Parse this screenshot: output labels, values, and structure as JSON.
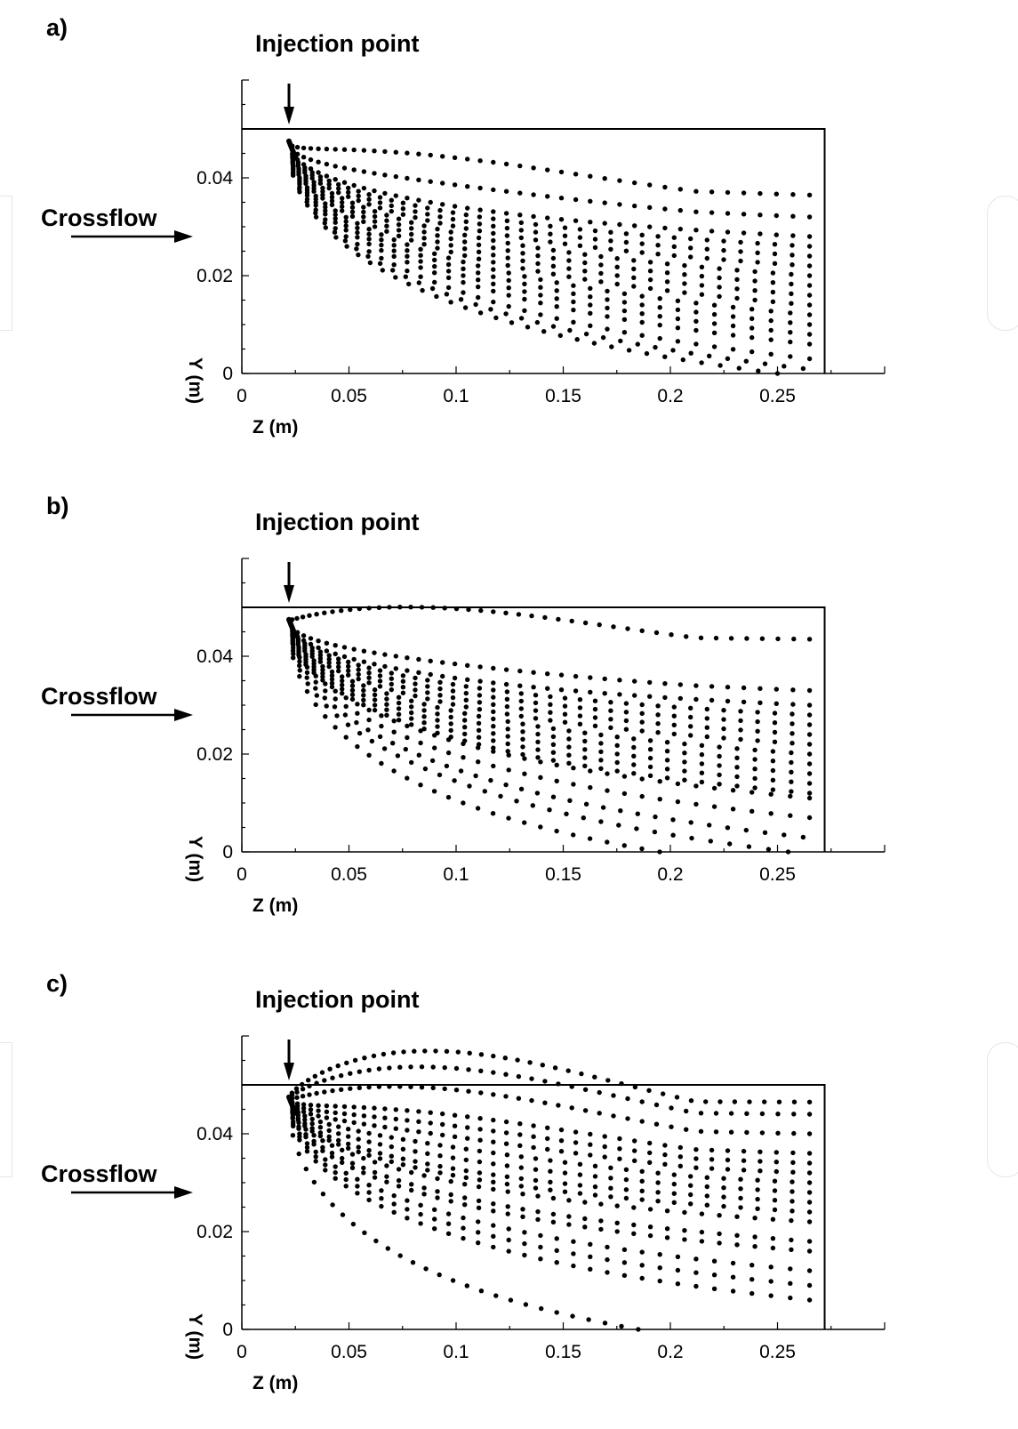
{
  "charts": [
    {
      "panel_label": "a)",
      "injection_label": "Injection point",
      "crossflow_label": "Crossflow",
      "chart_data": {
        "type": "scatter",
        "xlabel": "Z (m)",
        "ylabel": "Y (m)",
        "xlim": [
          0,
          0.3
        ],
        "ylim": [
          0,
          0.05
        ],
        "xticks": [
          0,
          0.05,
          0.1,
          0.15,
          0.2,
          0.25
        ],
        "xtick_labels": [
          "0",
          "0.05",
          "0.1",
          "0.15",
          "0.2",
          "0.25"
        ],
        "yticks": [
          0,
          0.02,
          0.04
        ],
        "ytick_labels": [
          "0",
          "0.02",
          "0.04"
        ],
        "domain_box": {
          "z_max": 0.272,
          "y_max": 0.05
        },
        "injection_point": {
          "z": 0.022,
          "y": 0.05
        },
        "trajectories": [
          {
            "z_end": 0.265,
            "y_end": 0.0365,
            "hump": 0.005,
            "points": 42
          },
          {
            "z_end": 0.265,
            "y_end": 0.032,
            "hump": 0.002,
            "points": 42
          },
          {
            "z_end": 0.265,
            "y_end": 0.028,
            "hump": 0.0,
            "points": 42
          },
          {
            "z_end": 0.265,
            "y_end": 0.026,
            "hump": 0.0,
            "points": 40
          },
          {
            "z_end": 0.265,
            "y_end": 0.024,
            "hump": 0.0,
            "points": 40
          },
          {
            "z_end": 0.265,
            "y_end": 0.022,
            "hump": 0.0,
            "points": 40
          },
          {
            "z_end": 0.265,
            "y_end": 0.02,
            "hump": 0.0,
            "points": 38
          },
          {
            "z_end": 0.265,
            "y_end": 0.018,
            "hump": 0.0,
            "points": 38
          },
          {
            "z_end": 0.265,
            "y_end": 0.016,
            "hump": 0.0,
            "points": 38
          },
          {
            "z_end": 0.265,
            "y_end": 0.014,
            "hump": 0.0,
            "points": 38
          },
          {
            "z_end": 0.265,
            "y_end": 0.012,
            "hump": 0.0,
            "points": 36
          },
          {
            "z_end": 0.265,
            "y_end": 0.01,
            "hump": 0.0,
            "points": 36
          },
          {
            "z_end": 0.265,
            "y_end": 0.008,
            "hump": 0.0,
            "points": 36
          },
          {
            "z_end": 0.265,
            "y_end": 0.006,
            "hump": 0.0,
            "points": 36
          },
          {
            "z_end": 0.265,
            "y_end": 0.003,
            "hump": 0.0,
            "points": 36
          },
          {
            "z_end": 0.262,
            "y_end": 0.001,
            "hump": 0.0,
            "points": 36
          },
          {
            "z_end": 0.25,
            "y_end": 0.0,
            "hump": 0.0,
            "points": 34
          }
        ]
      }
    },
    {
      "panel_label": "b)",
      "injection_label": "Injection point",
      "crossflow_label": "Crossflow",
      "chart_data": {
        "type": "scatter",
        "xlabel": "Z (m)",
        "ylabel": "Y (m)",
        "xlim": [
          0,
          0.3
        ],
        "ylim": [
          0,
          0.05
        ],
        "xticks": [
          0,
          0.05,
          0.1,
          0.15,
          0.2,
          0.25
        ],
        "xtick_labels": [
          "0",
          "0.05",
          "0.1",
          "0.15",
          "0.2",
          "0.25"
        ],
        "yticks": [
          0,
          0.02,
          0.04
        ],
        "ytick_labels": [
          "0",
          "0.02",
          "0.04"
        ],
        "domain_box": {
          "z_max": 0.272,
          "y_max": 0.05
        },
        "injection_point": {
          "z": 0.022,
          "y": 0.05
        },
        "trajectories": [
          {
            "z_end": 0.265,
            "y_end": 0.0435,
            "hump": 0.006,
            "points": 44
          },
          {
            "z_end": 0.265,
            "y_end": 0.033,
            "hump": 0.001,
            "points": 42
          },
          {
            "z_end": 0.265,
            "y_end": 0.03,
            "hump": 0.0,
            "points": 42
          },
          {
            "z_end": 0.265,
            "y_end": 0.028,
            "hump": 0.0,
            "points": 40
          },
          {
            "z_end": 0.265,
            "y_end": 0.026,
            "hump": 0.0,
            "points": 40
          },
          {
            "z_end": 0.265,
            "y_end": 0.024,
            "hump": 0.0,
            "points": 40
          },
          {
            "z_end": 0.265,
            "y_end": 0.022,
            "hump": 0.0,
            "points": 40
          },
          {
            "z_end": 0.265,
            "y_end": 0.02,
            "hump": 0.0,
            "points": 38
          },
          {
            "z_end": 0.265,
            "y_end": 0.018,
            "hump": 0.0,
            "points": 38
          },
          {
            "z_end": 0.265,
            "y_end": 0.016,
            "hump": 0.0,
            "points": 38
          },
          {
            "z_end": 0.265,
            "y_end": 0.014,
            "hump": 0.0,
            "points": 38
          },
          {
            "z_end": 0.265,
            "y_end": 0.012,
            "hump": 0.0,
            "points": 38
          },
          {
            "z_end": 0.265,
            "y_end": 0.011,
            "hump": 0.0,
            "points": 36
          },
          {
            "z_end": 0.265,
            "y_end": 0.007,
            "hump": 0.0,
            "points": 36
          },
          {
            "z_end": 0.262,
            "y_end": 0.003,
            "hump": 0.0,
            "points": 36
          },
          {
            "z_end": 0.255,
            "y_end": 0.0,
            "hump": 0.0,
            "points": 34
          },
          {
            "z_end": 0.195,
            "y_end": 0.0,
            "hump": 0.0,
            "points": 28
          }
        ]
      }
    },
    {
      "panel_label": "c)",
      "injection_label": "Injection point",
      "crossflow_label": "Crossflow",
      "chart_data": {
        "type": "scatter",
        "xlabel": "Z (m)",
        "ylabel": "Y (m)",
        "xlim": [
          0,
          0.3
        ],
        "ylim": [
          0,
          0.05
        ],
        "xticks": [
          0,
          0.05,
          0.1,
          0.15,
          0.2,
          0.25
        ],
        "xtick_labels": [
          "0",
          "0.05",
          "0.1",
          "0.15",
          "0.2",
          "0.25"
        ],
        "yticks": [
          0,
          0.02,
          0.04
        ],
        "ytick_labels": [
          "0",
          "0.02",
          "0.04"
        ],
        "domain_box": {
          "z_max": 0.272,
          "y_max": 0.05
        },
        "injection_point": {
          "z": 0.022,
          "y": 0.05
        },
        "trajectories": [
          {
            "z_end": 0.265,
            "y_end": 0.0465,
            "hump": 0.012,
            "points": 46
          },
          {
            "z_end": 0.265,
            "y_end": 0.044,
            "hump": 0.01,
            "points": 44
          },
          {
            "z_end": 0.265,
            "y_end": 0.04,
            "hump": 0.008,
            "points": 44
          },
          {
            "z_end": 0.265,
            "y_end": 0.036,
            "hump": 0.005,
            "points": 42
          },
          {
            "z_end": 0.265,
            "y_end": 0.034,
            "hump": 0.004,
            "points": 42
          },
          {
            "z_end": 0.265,
            "y_end": 0.032,
            "hump": 0.003,
            "points": 42
          },
          {
            "z_end": 0.265,
            "y_end": 0.03,
            "hump": 0.002,
            "points": 40
          },
          {
            "z_end": 0.265,
            "y_end": 0.028,
            "hump": 0.001,
            "points": 40
          },
          {
            "z_end": 0.265,
            "y_end": 0.026,
            "hump": 0.0,
            "points": 40
          },
          {
            "z_end": 0.265,
            "y_end": 0.024,
            "hump": 0.0,
            "points": 40
          },
          {
            "z_end": 0.265,
            "y_end": 0.022,
            "hump": 0.0,
            "points": 38
          },
          {
            "z_end": 0.265,
            "y_end": 0.018,
            "hump": 0.0,
            "points": 38
          },
          {
            "z_end": 0.265,
            "y_end": 0.016,
            "hump": 0.0,
            "points": 38
          },
          {
            "z_end": 0.265,
            "y_end": 0.012,
            "hump": 0.0,
            "points": 36
          },
          {
            "z_end": 0.265,
            "y_end": 0.009,
            "hump": 0.0,
            "points": 36
          },
          {
            "z_end": 0.265,
            "y_end": 0.006,
            "hump": 0.0,
            "points": 36
          },
          {
            "z_end": 0.185,
            "y_end": 0.0,
            "hump": 0.0,
            "points": 28
          }
        ]
      }
    }
  ]
}
